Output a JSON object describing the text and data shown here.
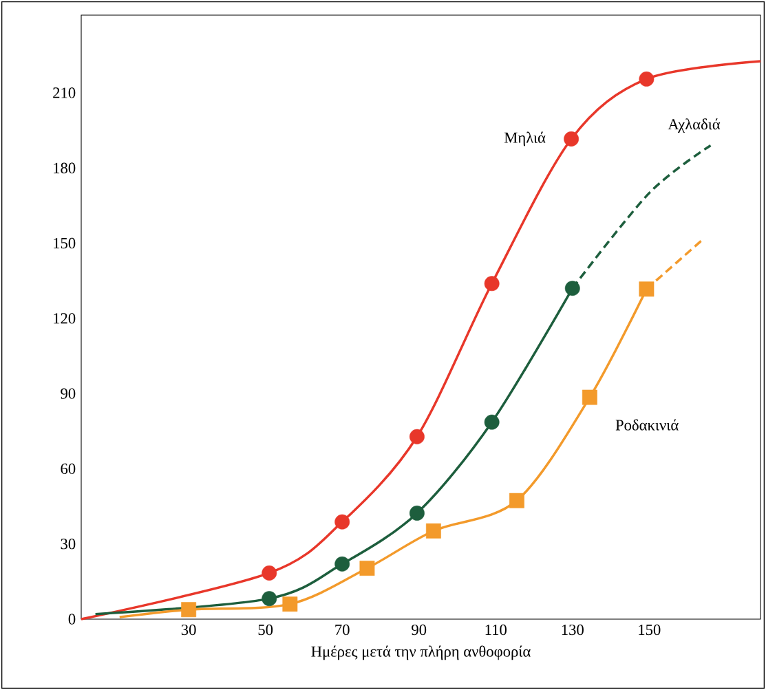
{
  "chart_data": {
    "type": "line",
    "xlabel": "Ημέρες μετά την πλήρη ανθοφορία",
    "xlim": [
      2,
      179
    ],
    "ylim": [
      0,
      241
    ],
    "xticks": [
      30,
      50,
      70,
      90,
      110,
      130,
      150
    ],
    "yticks": [
      0,
      30,
      60,
      90,
      120,
      150,
      180,
      210
    ],
    "series": [
      {
        "name": "Μηλιά",
        "color": "#e8372a",
        "marker": "none",
        "x": [
          2,
          51,
          70,
          89.5,
          109,
          129.7,
          149.3,
          179
        ],
        "values": [
          0,
          18.4,
          38.8,
          72.8,
          133.9,
          191.6,
          215.5,
          222.6
        ]
      },
      {
        "color": "#1d5e3d",
        "marker": "none",
        "x": [
          5.7,
          51,
          70,
          89.5,
          109,
          130
        ],
        "values": [
          2,
          8.2,
          22,
          42.3,
          78.6,
          132
        ]
      },
      {
        "name": "Αχλαδιά",
        "color": "#1d5e3d",
        "marker": "none",
        "line_style": "dashed",
        "x": [
          130,
          150,
          166
        ],
        "values": [
          132,
          170,
          189
        ]
      },
      {
        "name": "Ροδακινιά",
        "color": "#f39a2b",
        "marker": "none",
        "x": [
          12,
          30,
          56.4,
          76.5,
          93.8,
          115.5,
          134.5,
          149.3
        ],
        "values": [
          0.8,
          3.8,
          6,
          20.3,
          35.2,
          47.3,
          88.5,
          131.7
        ]
      },
      {
        "color": "#f39a2b",
        "marker": "none",
        "line_style": "dashed",
        "x": [
          149.3,
          163.6
        ],
        "values": [
          131.7,
          151
        ]
      },
      {
        "color": "#e8372a",
        "type": "scatter",
        "marker": "circle",
        "x": [
          51,
          70,
          89.5,
          109,
          129.7,
          149.3
        ],
        "values": [
          18.4,
          38.8,
          72.8,
          133.9,
          191.6,
          215.5
        ]
      },
      {
        "color": "#1d5e3d",
        "type": "scatter",
        "marker": "circle",
        "x": [
          51,
          70,
          89.5,
          109,
          130
        ],
        "values": [
          8.2,
          22,
          42.3,
          78.6,
          132
        ]
      },
      {
        "color": "#f39a2b",
        "type": "scatter",
        "marker": "square",
        "x": [
          30,
          56.4,
          76.5,
          93.8,
          115.5,
          134.5,
          149.3
        ],
        "values": [
          3.8,
          6,
          20.3,
          35.2,
          47.3,
          88.5,
          131.7
        ]
      }
    ]
  }
}
